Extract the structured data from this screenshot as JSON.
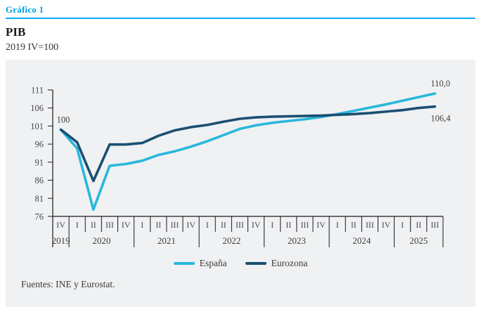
{
  "header": {
    "kicker": "Gráfico 1",
    "title": "PIB",
    "subtitle": "2019 IV=100"
  },
  "source": "Fuentes: INE y Eurostat.",
  "colors": {
    "accent_cyan": "#009fe3",
    "rule_cyan": "#00aeef",
    "panel_bg": "#eff1f3",
    "axis": "#1a1a1a",
    "tick_text": "#45464f",
    "espana": "#29b8dc",
    "eurozona": "#1b4f72"
  },
  "chart_data": {
    "type": "line",
    "title": "PIB",
    "subtitle": "2019 IV=100",
    "x_quarters": [
      "IV",
      "I",
      "II",
      "III",
      "IV",
      "I",
      "II",
      "III",
      "IV",
      "I",
      "II",
      "III",
      "IV",
      "I",
      "II",
      "III",
      "IV",
      "I",
      "II",
      "III",
      "IV",
      "I",
      "II",
      "III"
    ],
    "year_groups": [
      {
        "year": "2019",
        "span": 1
      },
      {
        "year": "2020",
        "span": 4
      },
      {
        "year": "2021",
        "span": 4
      },
      {
        "year": "2022",
        "span": 4
      },
      {
        "year": "2023",
        "span": 4
      },
      {
        "year": "2024",
        "span": 4
      },
      {
        "year": "2025",
        "span": 3
      }
    ],
    "ylim": [
      76,
      111
    ],
    "yticks": [
      111,
      106,
      101,
      96,
      91,
      86,
      81,
      76
    ],
    "grid": false,
    "legend_position": "bottom",
    "series": [
      {
        "name": "España",
        "color": "#29b8dc",
        "values": [
          100,
          94.8,
          77.9,
          90.0,
          90.5,
          91.4,
          93.0,
          94.0,
          95.3,
          96.8,
          98.5,
          100.2,
          101.2,
          101.9,
          102.4,
          102.9,
          103.5,
          104.3,
          105.2,
          106.1,
          107.0,
          108.0,
          109.0,
          110.0
        ]
      },
      {
        "name": "Eurozona",
        "color": "#1b4f72",
        "values": [
          100,
          96.5,
          85.8,
          95.9,
          95.9,
          96.3,
          98.3,
          99.8,
          100.7,
          101.3,
          102.2,
          103.0,
          103.4,
          103.6,
          103.7,
          103.8,
          103.9,
          104.1,
          104.3,
          104.6,
          105.0,
          105.4,
          106.0,
          106.4
        ]
      }
    ],
    "annotations": [
      {
        "text": "100",
        "series": "España",
        "point": 0,
        "position": "above"
      },
      {
        "text": "110,0",
        "series": "España",
        "point": 23,
        "position": "above"
      },
      {
        "text": "106,4",
        "series": "Eurozona",
        "point": 23,
        "position": "below"
      }
    ]
  }
}
